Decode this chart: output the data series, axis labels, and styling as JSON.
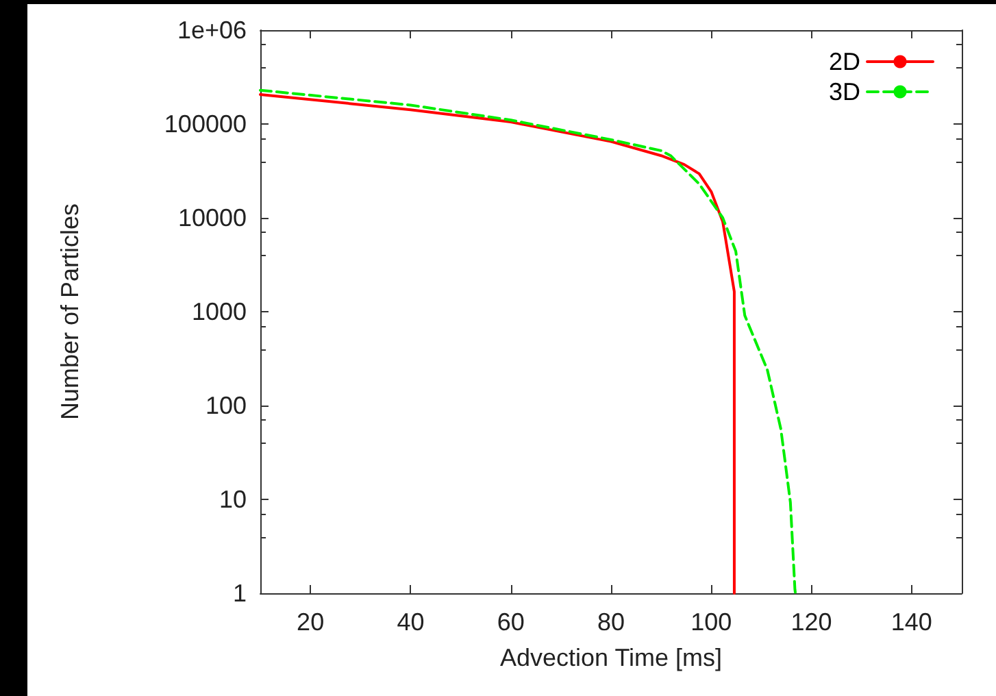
{
  "chart_data": {
    "type": "line",
    "xlabel": "Advection Time [ms]",
    "ylabel": "Number of Particles",
    "log": "y",
    "xlim": [
      10,
      150
    ],
    "xticks": [
      20,
      40,
      60,
      80,
      100,
      120,
      140
    ],
    "ylim": [
      1,
      1000000
    ],
    "yticks": [
      1,
      10,
      100,
      1000,
      10000,
      100000,
      {
        "value": 1000000,
        "label": "1e+06"
      }
    ],
    "grid": false,
    "legend": "top right",
    "marker": "none",
    "series": [
      {
        "name": "2D",
        "color": "#ff0000",
        "line_style": "solid",
        "x": [
          10,
          40,
          60,
          80,
          90,
          94.6,
          97.6,
          100,
          102.3,
          104.6,
          104.6
        ],
        "values": [
          206000,
          142000,
          105000,
          65000,
          46000,
          37000,
          29500,
          19000,
          9100,
          1640,
          1
        ]
      },
      {
        "name": "3D",
        "color": "#00ee00",
        "line_style": "dashed",
        "x": [
          10,
          40,
          60,
          80,
          90,
          91.9,
          97.6,
          102.3,
          104.9,
          106.7,
          111.2,
          113.9,
          115.8,
          116.7,
          116.8
        ],
        "values": [
          229000,
          159000,
          110000,
          68000,
          52000,
          46000,
          23000,
          10000,
          4400,
          910,
          240,
          56,
          9.3,
          1.1,
          1
        ]
      }
    ]
  }
}
